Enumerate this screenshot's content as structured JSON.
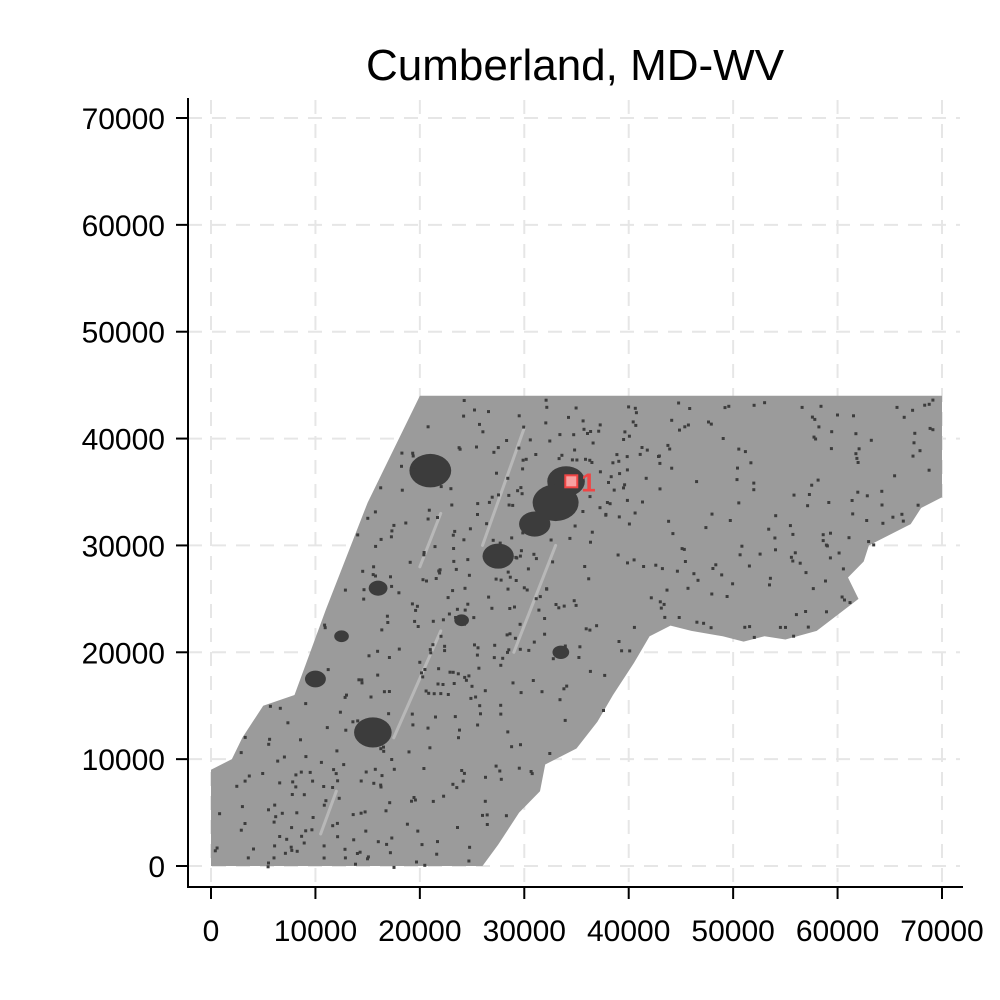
{
  "chart_data": {
    "type": "scatter",
    "title": "Cumberland, MD-WV",
    "xlabel": "",
    "ylabel": "",
    "xlim": [
      0,
      70000
    ],
    "ylim": [
      0,
      70000
    ],
    "x_ticks": [
      "0",
      "10000",
      "20000",
      "30000",
      "40000",
      "50000",
      "60000",
      "70000"
    ],
    "y_ticks": [
      "0",
      "10000",
      "20000",
      "30000",
      "40000",
      "50000",
      "60000",
      "70000"
    ],
    "grid": true,
    "region_outline": [
      [
        0,
        0
      ],
      [
        26000,
        0
      ],
      [
        27500,
        2000
      ],
      [
        29500,
        5000
      ],
      [
        31500,
        7000
      ],
      [
        32000,
        9500
      ],
      [
        35000,
        11000
      ],
      [
        37000,
        13500
      ],
      [
        38500,
        16000
      ],
      [
        40500,
        19000
      ],
      [
        42000,
        21500
      ],
      [
        44000,
        22500
      ],
      [
        46000,
        22000
      ],
      [
        49000,
        21500
      ],
      [
        51000,
        21000
      ],
      [
        53000,
        21500
      ],
      [
        55000,
        21200
      ],
      [
        58000,
        22000
      ],
      [
        60000,
        23500
      ],
      [
        62000,
        25000
      ],
      [
        61000,
        27000
      ],
      [
        62500,
        28500
      ],
      [
        63000,
        30000
      ],
      [
        65000,
        31000
      ],
      [
        67000,
        32000
      ],
      [
        68000,
        33500
      ],
      [
        70000,
        34500
      ],
      [
        70000,
        44000
      ],
      [
        20000,
        44000
      ],
      [
        15000,
        34000
      ],
      [
        11000,
        24000
      ],
      [
        8000,
        16000
      ],
      [
        5000,
        15000
      ],
      [
        3000,
        12000
      ],
      [
        2000,
        10000
      ],
      [
        0,
        9000
      ]
    ],
    "clusters": [
      {
        "x": 34000,
        "y": 36000,
        "size": 1800
      },
      {
        "x": 33000,
        "y": 34000,
        "size": 2200
      },
      {
        "x": 21000,
        "y": 37000,
        "size": 2000
      },
      {
        "x": 27500,
        "y": 29000,
        "size": 1500
      },
      {
        "x": 31000,
        "y": 32000,
        "size": 1500
      },
      {
        "x": 15500,
        "y": 12500,
        "size": 1800
      },
      {
        "x": 10000,
        "y": 17500,
        "size": 1000
      },
      {
        "x": 16000,
        "y": 26000,
        "size": 900
      },
      {
        "x": 12500,
        "y": 21500,
        "size": 700
      },
      {
        "x": 33500,
        "y": 20000,
        "size": 800
      },
      {
        "x": 24000,
        "y": 23000,
        "size": 700
      }
    ],
    "highlight": {
      "label": "1",
      "x": 34500,
      "y": 36000,
      "color": "#f04545"
    },
    "colors": {
      "region": "#9b9b9b",
      "dense": "#3c3c3c",
      "light": "#b8b8b8",
      "grid": "#e6e6e6",
      "axis": "#000000"
    }
  }
}
